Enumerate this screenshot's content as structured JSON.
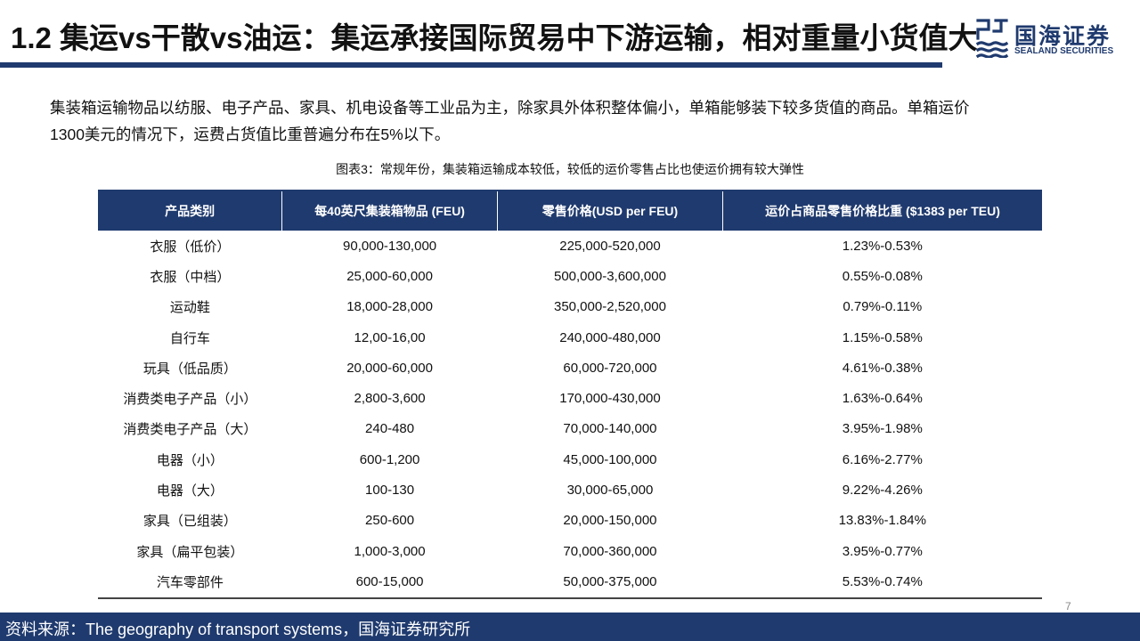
{
  "header": {
    "title": "1.2 集运vs干散vs油运：集运承接国际贸易中下游运输，相对重量小货值大"
  },
  "logo": {
    "name_cn": "国海证券",
    "name_en": "SEALAND SECURITIES"
  },
  "intro": "集装箱运输物品以纺服、电子产品、家具、机电设备等工业品为主，除家具外体积整体偏小，单箱能够装下较多货值的商品。单箱运价1300美元的情况下，运费占货值比重普遍分布在5%以下。",
  "table": {
    "caption": "图表3：常规年份，集装箱运输成本较低，较低的运价零售占比也使运价拥有较大弹性",
    "headers": [
      "产品类别",
      "每40英尺集装箱物品 (FEU)",
      "零售价格(USD per FEU)",
      "运价占商品零售价格比重 ($1383 per TEU)"
    ],
    "rows": [
      [
        "衣服（低价）",
        "90,000-130,000",
        "225,000-520,000",
        "1.23%-0.53%"
      ],
      [
        "衣服（中档）",
        "25,000-60,000",
        "500,000-3,600,000",
        "0.55%-0.08%"
      ],
      [
        "运动鞋",
        "18,000-28,000",
        "350,000-2,520,000",
        "0.79%-0.11%"
      ],
      [
        "自行车",
        "12,00-16,00",
        "240,000-480,000",
        "1.15%-0.58%"
      ],
      [
        "玩具（低品质）",
        "20,000-60,000",
        "60,000-720,000",
        "4.61%-0.38%"
      ],
      [
        "消费类电子产品（小）",
        "2,800-3,600",
        "170,000-430,000",
        "1.63%-0.64%"
      ],
      [
        "消费类电子产品（大）",
        "240-480",
        "70,000-140,000",
        "3.95%-1.98%"
      ],
      [
        "电器（小）",
        "600-1,200",
        "45,000-100,000",
        "6.16%-2.77%"
      ],
      [
        "电器（大）",
        "100-130",
        "30,000-65,000",
        "9.22%-4.26%"
      ],
      [
        "家具（已组装）",
        "250-600",
        "20,000-150,000",
        "13.83%-1.84%"
      ],
      [
        "家具（扁平包装）",
        "1,000-3,000",
        "70,000-360,000",
        "3.95%-0.77%"
      ],
      [
        "汽车零部件",
        "600-15,000",
        "50,000-375,000",
        "5.53%-0.74%"
      ]
    ]
  },
  "page_number": "7",
  "footer": {
    "source": "资料来源：The geography of transport systems，国海证券研究所"
  },
  "colors": {
    "brand_navy": "#1f3a6e"
  }
}
